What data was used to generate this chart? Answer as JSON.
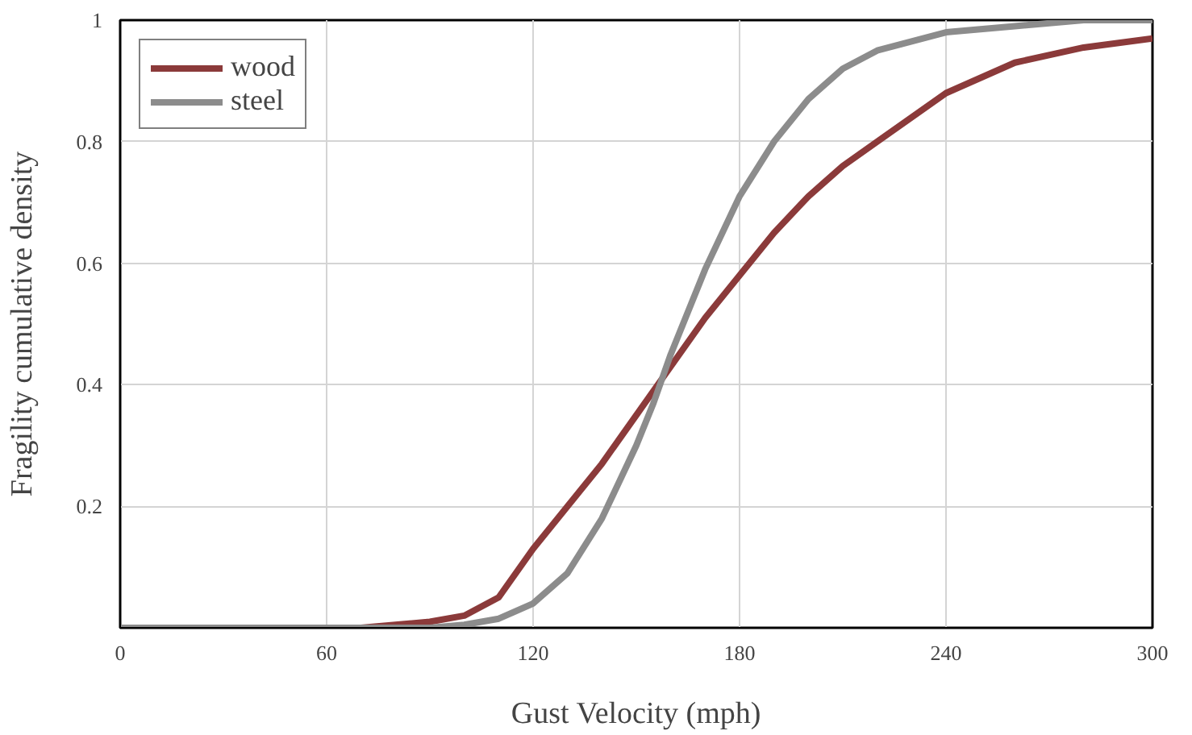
{
  "chart_data": {
    "type": "line",
    "xlabel": "Gust Velocity (mph)",
    "ylabel": "Fragility cumulative density",
    "xlim": [
      0,
      300
    ],
    "ylim": [
      0,
      1
    ],
    "xticks": [
      0,
      60,
      120,
      180,
      240,
      300
    ],
    "yticks": [
      0.2,
      0.4,
      0.6,
      0.8,
      1
    ],
    "grid": true,
    "legend": "top left",
    "line_style": "solid",
    "marker": "none",
    "series": [
      {
        "name": "wood",
        "color": "#8b3a3a",
        "x": [
          0,
          70,
          80,
          90,
          100,
          110,
          120,
          130,
          140,
          150,
          160,
          170,
          180,
          190,
          200,
          210,
          220,
          240,
          260,
          280,
          300
        ],
        "values": [
          0,
          0,
          0.005,
          0.01,
          0.02,
          0.05,
          0.13,
          0.2,
          0.27,
          0.35,
          0.43,
          0.51,
          0.58,
          0.65,
          0.71,
          0.76,
          0.8,
          0.88,
          0.93,
          0.955,
          0.97
        ]
      },
      {
        "name": "steel",
        "color": "#8c8c8c",
        "x": [
          0,
          90,
          100,
          110,
          120,
          130,
          140,
          150,
          155,
          160,
          170,
          180,
          190,
          200,
          210,
          220,
          240,
          260,
          280,
          300
        ],
        "values": [
          0,
          0,
          0.005,
          0.015,
          0.04,
          0.09,
          0.18,
          0.3,
          0.37,
          0.45,
          0.59,
          0.71,
          0.8,
          0.87,
          0.92,
          0.95,
          0.98,
          0.99,
          1,
          1
        ]
      }
    ]
  }
}
